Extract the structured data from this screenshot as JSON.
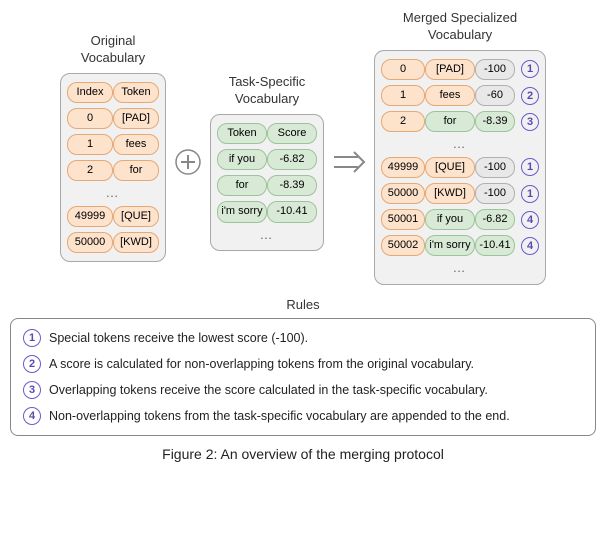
{
  "colors": {
    "orange_bg": "#fde2cc",
    "orange_border": "#e6a875",
    "green_bg": "#d8ead6",
    "green_border": "#9cc49a",
    "grey_bg": "#e8e8e8",
    "grey_border": "#b0b0b0",
    "box_bg": "#f1f1f1",
    "box_border": "#a8a8a8",
    "badge_border": "#6a5acd",
    "badge_text": "#584bb0",
    "operator_stroke": "#888888",
    "text": "#333333"
  },
  "layout": {
    "orig_cell_w": 46,
    "task_cell_w": 50,
    "merged_idx_w": 44,
    "merged_tok_w": 50,
    "merged_score_w": 40,
    "pill_h": 20
  },
  "original": {
    "title": "Original\nVocabulary",
    "header": [
      "Index",
      "Token"
    ],
    "rows_top": [
      [
        "0",
        "[PAD]"
      ],
      [
        "1",
        "fees"
      ],
      [
        "2",
        "for"
      ]
    ],
    "rows_bottom": [
      [
        "49999",
        "[QUE]"
      ],
      [
        "50000",
        "[KWD]"
      ]
    ]
  },
  "task": {
    "title": "Task-Specific\nVocabulary",
    "header": [
      "Token",
      "Score"
    ],
    "rows": [
      [
        "if you",
        "-6.82"
      ],
      [
        "for",
        "-8.39"
      ],
      [
        "i'm sorry",
        "-10.41"
      ]
    ]
  },
  "merged": {
    "title": "Merged Specialized\nVocabulary",
    "rows_top": [
      {
        "cells": [
          "0",
          "[PAD]",
          "-100"
        ],
        "types": [
          "o",
          "o",
          "g"
        ],
        "badge": "1"
      },
      {
        "cells": [
          "1",
          "fees",
          "-60"
        ],
        "types": [
          "o",
          "o",
          "g"
        ],
        "badge": "2"
      },
      {
        "cells": [
          "2",
          "for",
          "-8.39"
        ],
        "types": [
          "o",
          "gr",
          "gr"
        ],
        "badge": "3"
      }
    ],
    "rows_bottom": [
      {
        "cells": [
          "49999",
          "[QUE]",
          "-100"
        ],
        "types": [
          "o",
          "o",
          "g"
        ],
        "badge": "1"
      },
      {
        "cells": [
          "50000",
          "[KWD]",
          "-100"
        ],
        "types": [
          "o",
          "o",
          "g"
        ],
        "badge": "1"
      },
      {
        "cells": [
          "50001",
          "if you",
          "-6.82"
        ],
        "types": [
          "o",
          "gr",
          "gr"
        ],
        "badge": "4"
      },
      {
        "cells": [
          "50002",
          "i'm sorry",
          "-10.41"
        ],
        "types": [
          "o",
          "gr",
          "gr"
        ],
        "badge": "4"
      }
    ]
  },
  "rules": {
    "title": "Rules",
    "items": [
      {
        "badge": "1",
        "text": "Special tokens receive the lowest score (-100)."
      },
      {
        "badge": "2",
        "text": "A score is calculated for non-overlapping tokens from the original vocabulary."
      },
      {
        "badge": "3",
        "text": "Overlapping tokens receive the score calculated in the task-specific vocabulary."
      },
      {
        "badge": "4",
        "text": "Non-overlapping tokens from the task-specific vocabulary are appended to the end."
      }
    ]
  },
  "caption": "Figure 2: An overview of the merging protocol"
}
